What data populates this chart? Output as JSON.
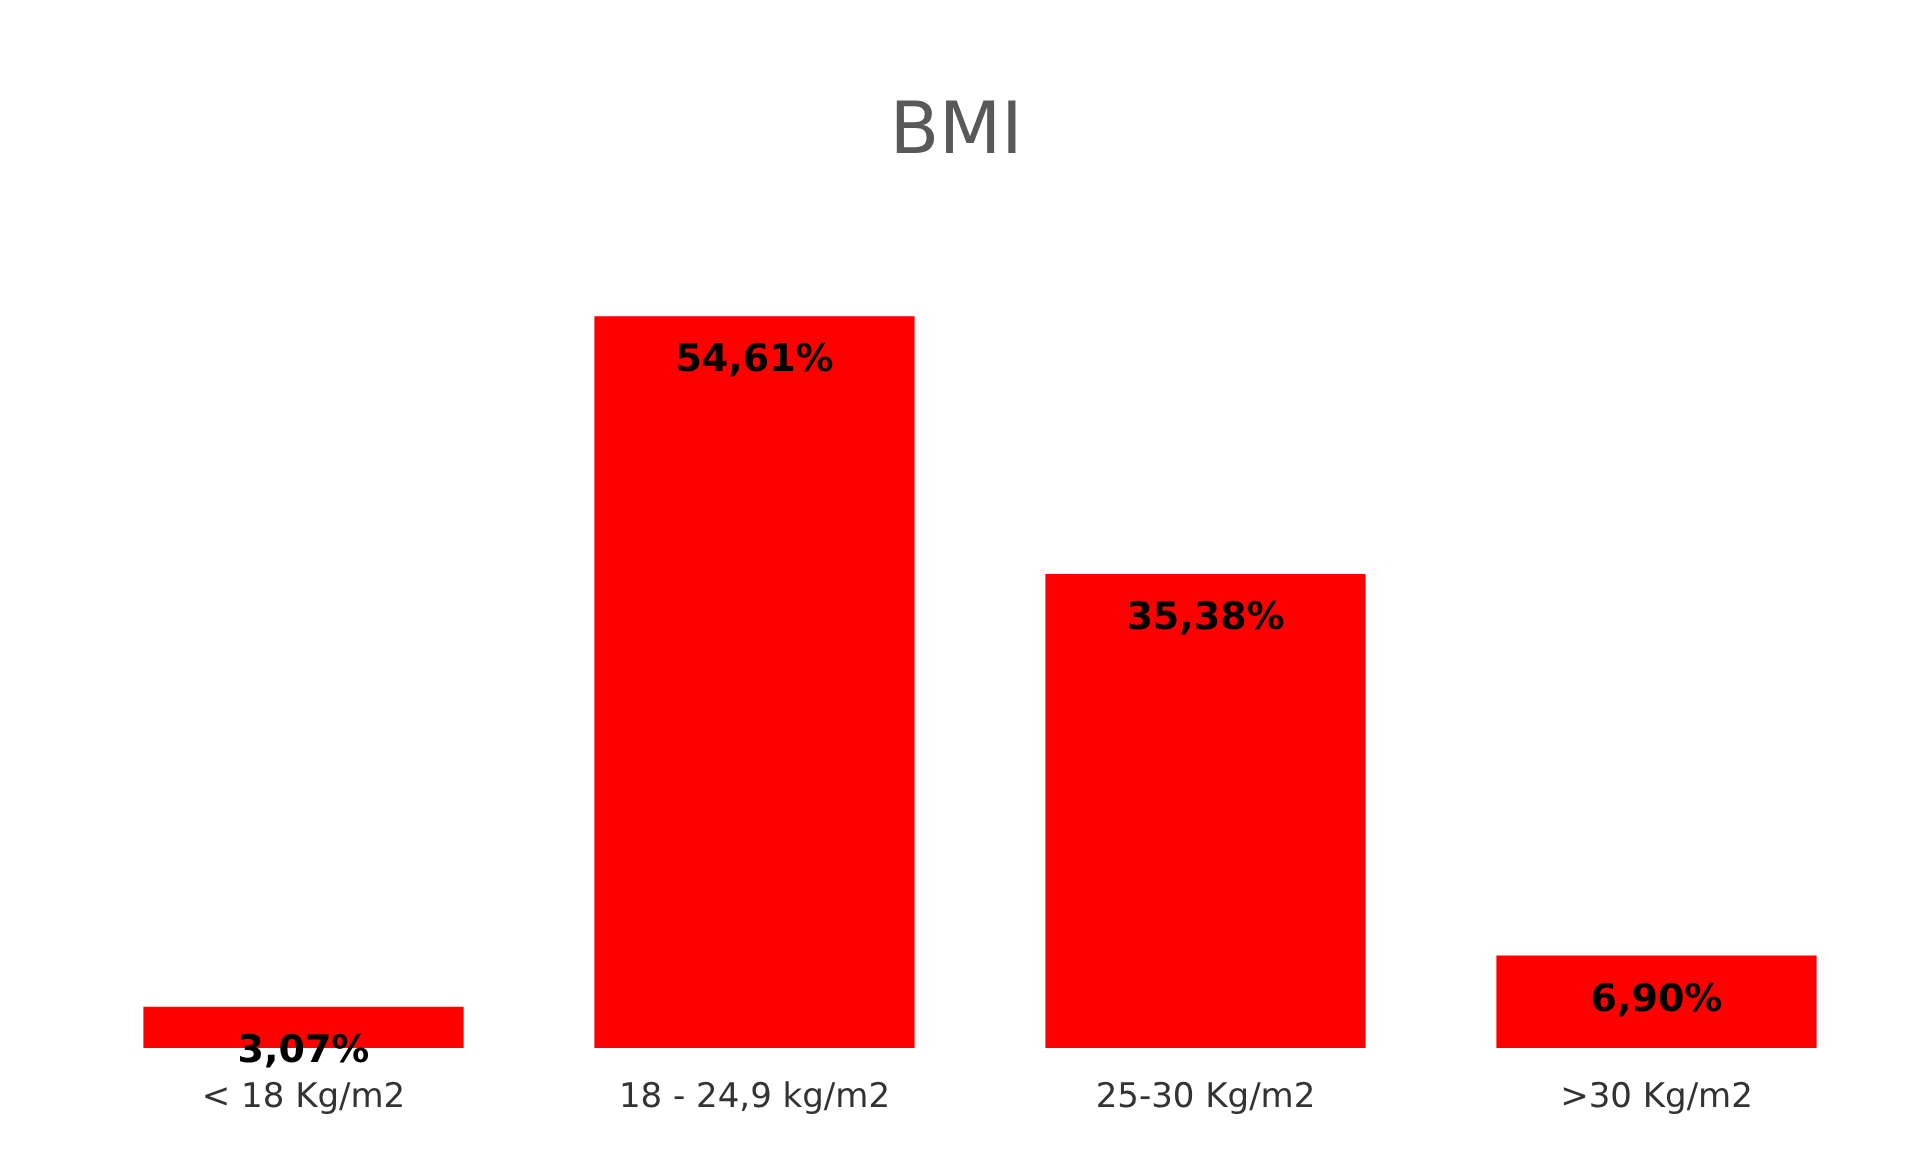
{
  "chart_data": {
    "type": "bar",
    "title": "BMI",
    "categories": [
      "< 18 Kg/m2",
      "18 - 24,9 kg/m2",
      "25-30 Kg/m2",
      ">30 Kg/m2"
    ],
    "values": [
      3.07,
      54.61,
      35.38,
      6.9
    ],
    "value_labels": [
      "3,07%",
      "54,61%",
      "35,38%",
      "6,90%"
    ],
    "color": "#ff0000",
    "tick_labels": "x"
  }
}
